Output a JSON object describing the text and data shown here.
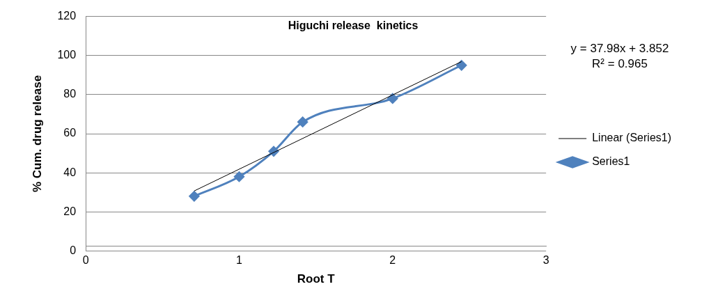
{
  "chart_data": {
    "type": "line",
    "title": "Higuchi release  kinetics",
    "xlabel": "Root T",
    "ylabel": "% Cum. drug release",
    "annotations": [
      "y = 37.98x + 3.852",
      "R² = 0.965"
    ],
    "series": [
      {
        "name": "Series1",
        "color": "#4f81bd",
        "marker": "diamond",
        "x": [
          0.707,
          1,
          1.225,
          1.414,
          2,
          2.449
        ],
        "values": [
          28,
          38,
          51,
          66,
          78,
          95
        ]
      },
      {
        "name": "Linear (Series1)",
        "color": "#000000",
        "marker": "none",
        "x": [
          0.707,
          2.449
        ],
        "values": [
          30.7,
          96.9
        ]
      }
    ],
    "xlim": [
      0,
      3
    ],
    "xticks": [
      0,
      1,
      2,
      3
    ],
    "ylim": [
      0,
      120
    ],
    "yticks": [
      0,
      20,
      40,
      60,
      80,
      100,
      120
    ],
    "grid": "y",
    "legend": "right"
  }
}
